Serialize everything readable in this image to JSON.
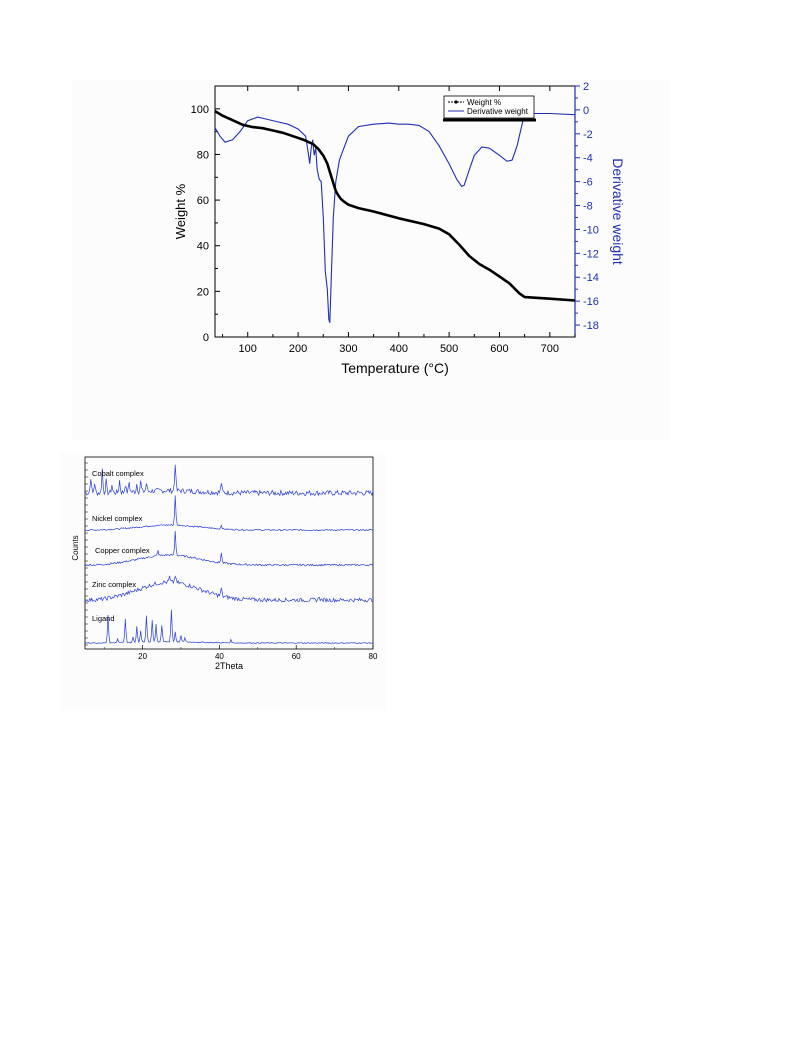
{
  "colors": {
    "weight_curve": "#000000",
    "derivative_curve": "#1f2fb4",
    "xrd_curve": "#2a3ed8",
    "axis": "#000000",
    "derivative_axis": "#1f2fb4"
  },
  "chart_data": [
    {
      "type": "line",
      "xlabel": "Temperature (°C)",
      "ylabel": "Weight %",
      "y2label": "Derivative weight",
      "xlim": [
        35,
        750
      ],
      "ylim": [
        0,
        110
      ],
      "y2lim": [
        -19,
        2
      ],
      "xticks": [
        100,
        200,
        300,
        400,
        500,
        600,
        700
      ],
      "yticks": [
        0,
        20,
        40,
        60,
        80,
        100
      ],
      "y2ticks": [
        2,
        0,
        -2,
        -4,
        -6,
        -8,
        -10,
        -12,
        -14,
        -16,
        -18
      ],
      "legend": {
        "position": "top-right",
        "entries": [
          "Weight %",
          "Derivative weight"
        ]
      },
      "grid": false,
      "series": [
        {
          "name": "Weight %",
          "axis": "left",
          "x": [
            35,
            50,
            70,
            90,
            110,
            130,
            150,
            170,
            190,
            210,
            230,
            240,
            250,
            258,
            265,
            270,
            275,
            280,
            285,
            290,
            300,
            320,
            350,
            400,
            450,
            480,
            500,
            520,
            540,
            560,
            580,
            600,
            620,
            640,
            650,
            700,
            750
          ],
          "y": [
            99,
            97,
            95,
            93,
            92,
            91.5,
            90.5,
            89.5,
            88,
            86.5,
            84.5,
            82.5,
            79.5,
            76,
            71,
            67.5,
            64,
            62,
            60.5,
            59.5,
            58,
            56.5,
            55,
            52,
            49.5,
            47.5,
            45,
            40.5,
            35.5,
            32,
            29.5,
            26.5,
            23.5,
            19,
            17.5,
            16.8,
            16
          ]
        },
        {
          "name": "Derivative weight",
          "axis": "right",
          "x": [
            35,
            45,
            55,
            70,
            85,
            100,
            120,
            140,
            160,
            180,
            200,
            215,
            220,
            223,
            226,
            229,
            232,
            235,
            238,
            242,
            246,
            250,
            254,
            258,
            261,
            263,
            266,
            270,
            275,
            282,
            290,
            300,
            320,
            350,
            380,
            400,
            420,
            440,
            460,
            480,
            500,
            515,
            525,
            530,
            540,
            550,
            565,
            580,
            600,
            615,
            625,
            635,
            645,
            650,
            660,
            700,
            750
          ],
          "y": [
            -1.5,
            -2.2,
            -2.7,
            -2.5,
            -1.8,
            -0.9,
            -0.6,
            -0.8,
            -1.0,
            -1.2,
            -1.6,
            -2.2,
            -3.5,
            -4.5,
            -3.2,
            -2.5,
            -3.8,
            -3.2,
            -5.0,
            -5.8,
            -6.0,
            -9.0,
            -13.5,
            -15.0,
            -17.5,
            -17.8,
            -14.0,
            -9.0,
            -6.0,
            -4.2,
            -3.3,
            -2.2,
            -1.4,
            -1.2,
            -1.1,
            -1.2,
            -1.2,
            -1.3,
            -1.8,
            -3.0,
            -4.5,
            -5.8,
            -6.4,
            -6.3,
            -5.0,
            -3.8,
            -3.1,
            -3.2,
            -3.8,
            -4.3,
            -4.2,
            -3.0,
            -1.2,
            -0.3,
            -0.3,
            -0.3,
            -0.4
          ]
        }
      ]
    },
    {
      "type": "line",
      "xlabel": "2Theta",
      "ylabel": "Counts",
      "xlim": [
        5,
        80
      ],
      "xticks": [
        20,
        40,
        60,
        80
      ],
      "grid": false,
      "series": [
        {
          "name": "Cobalt complex",
          "baseline": 4,
          "hump": 1.2,
          "noise": 1.3,
          "peaks": [
            [
              6.5,
              8
            ],
            [
              7.5,
              5
            ],
            [
              9.5,
              12
            ],
            [
              10.5,
              6
            ],
            [
              12,
              4
            ],
            [
              14,
              6
            ],
            [
              15.5,
              4
            ],
            [
              16.5,
              5
            ],
            [
              18.5,
              4
            ],
            [
              19.5,
              5
            ],
            [
              21,
              4
            ],
            [
              28.5,
              14
            ],
            [
              40.5,
              5
            ]
          ]
        },
        {
          "name": "Nickel complex",
          "baseline": 4,
          "hump": 2.5,
          "noise": 0.35,
          "peaks": [
            [
              28.5,
              15
            ],
            [
              40.5,
              2
            ]
          ]
        },
        {
          "name": "Copper complex",
          "baseline": 4,
          "hump": 5,
          "noise": 0.45,
          "peaks": [
            [
              24,
              2.5
            ],
            [
              28.5,
              12
            ],
            [
              40.5,
              5
            ]
          ]
        },
        {
          "name": "Zinc complex",
          "baseline": 4,
          "hump": 9,
          "noise": 1.0,
          "peaks": [
            [
              27,
              2.5
            ],
            [
              28.5,
              3.5
            ],
            [
              40.5,
              4
            ],
            [
              66,
              2
            ]
          ]
        },
        {
          "name": "Ligand",
          "baseline": 4,
          "hump": 0.6,
          "noise": 0.25,
          "peaks": [
            [
              11,
              14
            ],
            [
              13.5,
              2
            ],
            [
              15.5,
              12
            ],
            [
              17.5,
              3
            ],
            [
              18.5,
              8
            ],
            [
              19.5,
              6
            ],
            [
              21,
              13
            ],
            [
              22.5,
              11
            ],
            [
              23.5,
              9
            ],
            [
              25,
              8
            ],
            [
              27.5,
              16
            ],
            [
              28.5,
              5
            ],
            [
              30,
              3
            ],
            [
              31,
              2
            ],
            [
              43,
              1.5
            ]
          ]
        }
      ]
    }
  ]
}
